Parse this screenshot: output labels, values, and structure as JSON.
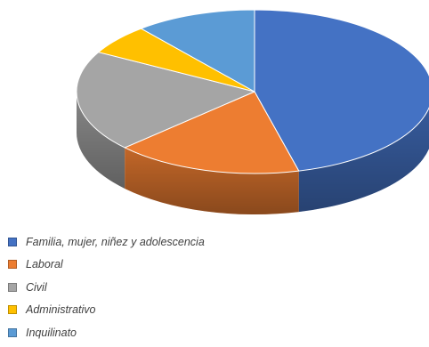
{
  "chart_data": {
    "type": "pie",
    "style": "3d",
    "title": "",
    "legend_position": "bottom-left",
    "categories": [
      "Familia, mujer, niñez y adolescencia",
      "Laboral",
      "Civil",
      "Administrativo",
      "Inquilinato"
    ],
    "values": [
      46,
      17,
      20,
      6,
      11
    ],
    "unit": "%",
    "colors": [
      "#4472c4",
      "#ed7d31",
      "#a5a5a5",
      "#ffc000",
      "#5b9bd5"
    ],
    "start_angle_deg": 90,
    "direction": "clockwise"
  }
}
